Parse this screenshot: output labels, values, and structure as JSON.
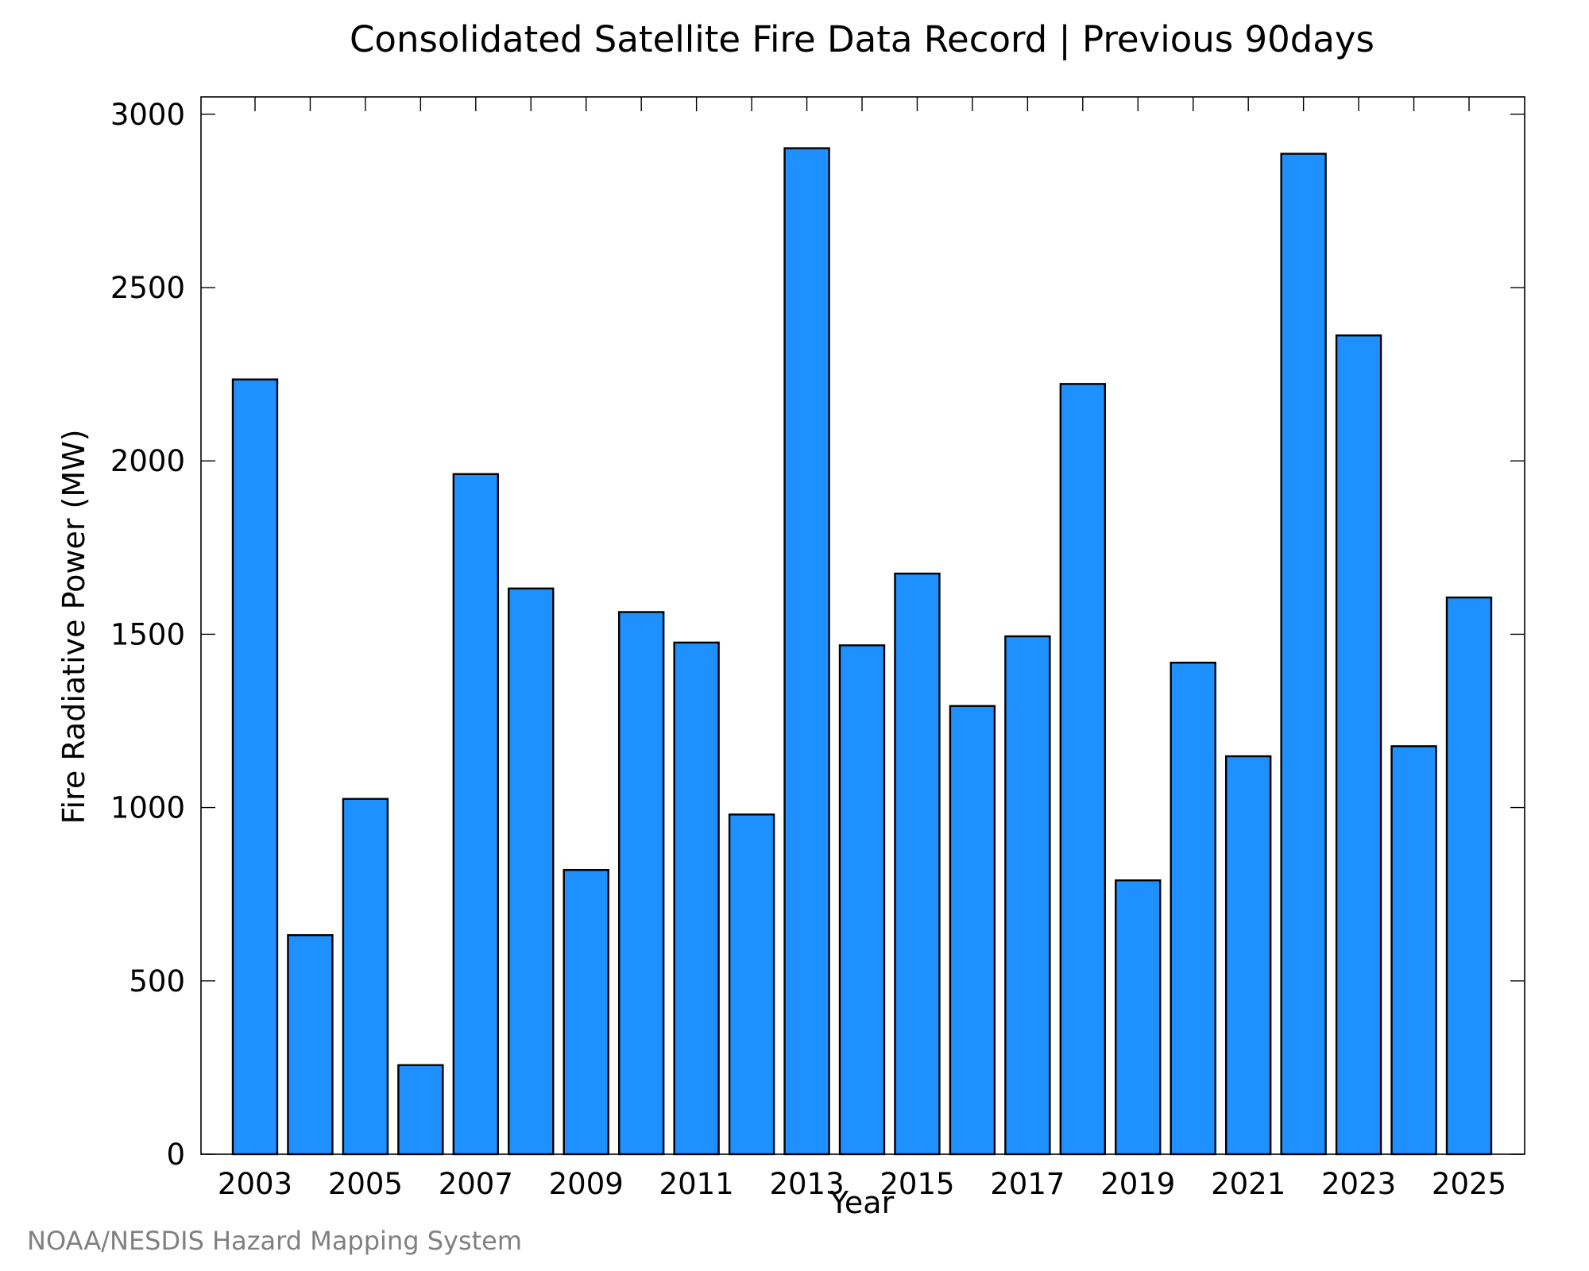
{
  "chart_data": {
    "type": "bar",
    "title": "Consolidated Satellite Fire Data Record | Previous 90days",
    "xlabel": "Year",
    "ylabel": "Fire Radiative Power (MW)",
    "footer": "NOAA/NESDIS Hazard Mapping System",
    "categories": [
      "2003",
      "2004",
      "2005",
      "2006",
      "2007",
      "2008",
      "2009",
      "2010",
      "2011",
      "2012",
      "2013",
      "2014",
      "2015",
      "2016",
      "2017",
      "2018",
      "2019",
      "2020",
      "2021",
      "2022",
      "2023",
      "2024",
      "2025"
    ],
    "values": [
      2235,
      632,
      1025,
      257,
      1962,
      1632,
      820,
      1564,
      1476,
      980,
      2902,
      1468,
      1675,
      1293,
      1494,
      2222,
      790,
      1418,
      1148,
      2886,
      2362,
      1177,
      1606
    ],
    "x_tick_labels": [
      "2003",
      "2005",
      "2007",
      "2009",
      "2011",
      "2013",
      "2015",
      "2017",
      "2019",
      "2021",
      "2023",
      "2025"
    ],
    "y_ticks": [
      0,
      500,
      1000,
      1500,
      2000,
      2500,
      3000
    ],
    "ylim": [
      0,
      3050
    ],
    "bar_color": "#1e90ff",
    "bar_edge_color": "#000000",
    "grid": false,
    "legend": false
  }
}
